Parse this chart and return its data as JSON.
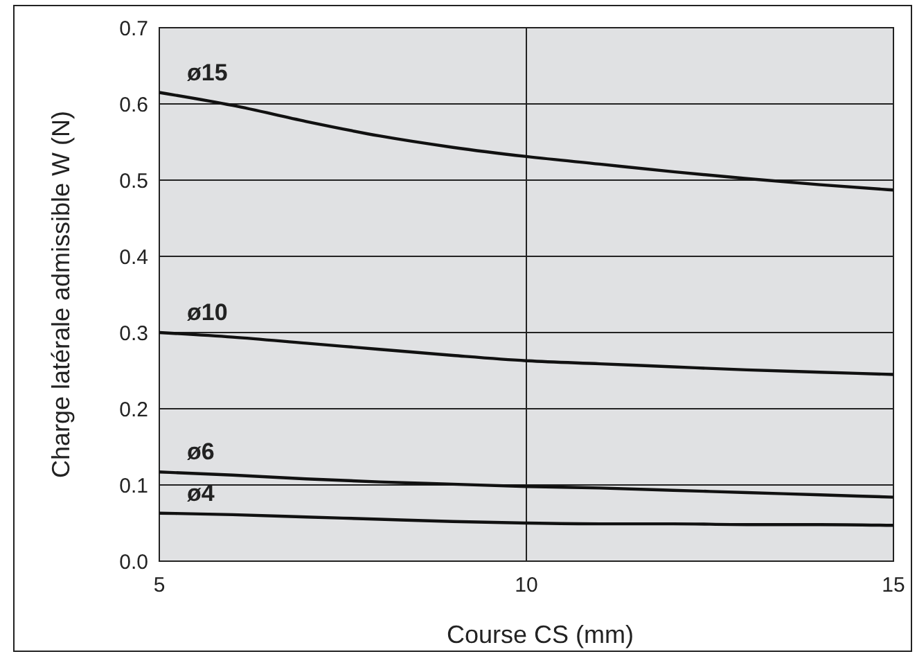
{
  "chart_data": {
    "type": "line",
    "xlabel": "Course CS (mm)",
    "ylabel": "Charge latérale admissible W (N)",
    "xlim": [
      5,
      15
    ],
    "xticks": [
      5,
      10,
      15
    ],
    "ylim": [
      0,
      0.7
    ],
    "yticks": [
      {
        "value": 0,
        "label": "0.0"
      },
      0.1,
      0.2,
      0.3,
      0.4,
      0.5,
      0.6,
      0.7
    ],
    "grid": true,
    "marker": "none",
    "line_style": "solid",
    "x": [
      5,
      6,
      7,
      8,
      9,
      10,
      11,
      12,
      13,
      14,
      15
    ],
    "series": [
      {
        "name": "ø15",
        "color": "#111111",
        "values": [
          0.615,
          0.598,
          0.577,
          0.558,
          0.543,
          0.531,
          0.521,
          0.511,
          0.502,
          0.494,
          0.487
        ]
      },
      {
        "name": "ø10",
        "color": "#111111",
        "values": [
          0.3,
          0.294,
          0.286,
          0.278,
          0.27,
          0.263,
          0.259,
          0.255,
          0.251,
          0.248,
          0.245
        ]
      },
      {
        "name": "ø6",
        "color": "#111111",
        "values": [
          0.117,
          0.113,
          0.108,
          0.104,
          0.101,
          0.098,
          0.096,
          0.093,
          0.09,
          0.087,
          0.084
        ]
      },
      {
        "name": "ø4",
        "color": "#111111",
        "values": [
          0.063,
          0.061,
          0.058,
          0.055,
          0.052,
          0.05,
          0.049,
          0.049,
          0.048,
          0.048,
          0.047
        ]
      }
    ]
  }
}
